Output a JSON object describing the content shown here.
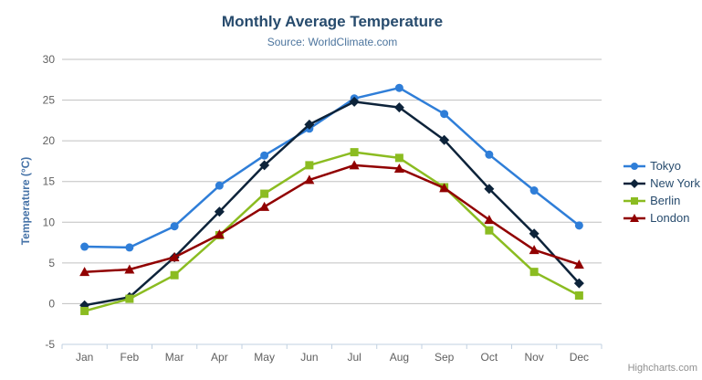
{
  "header": {
    "title": "Monthly Average Temperature",
    "subtitle": "Source: WorldClimate.com"
  },
  "credits": {
    "label": "Highcharts.com"
  },
  "export_menu": {
    "icon": "hamburger-icon"
  },
  "chart_data": {
    "type": "line",
    "title": "Monthly Average Temperature",
    "subtitle": "Source: WorldClimate.com",
    "categories": [
      "Jan",
      "Feb",
      "Mar",
      "Apr",
      "May",
      "Jun",
      "Jul",
      "Aug",
      "Sep",
      "Oct",
      "Nov",
      "Dec"
    ],
    "xlabel": "",
    "ylabel": "Temperature (°C)",
    "ylim": [
      -5,
      30
    ],
    "yticks": [
      -5,
      0,
      5,
      10,
      15,
      20,
      25,
      30
    ],
    "grid": true,
    "legend_position": "right",
    "series": [
      {
        "name": "Tokyo",
        "color": "#2f7ed8",
        "marker": "circle",
        "values": [
          7.0,
          6.9,
          9.5,
          14.5,
          18.2,
          21.5,
          25.2,
          26.5,
          23.3,
          18.3,
          13.9,
          9.6
        ]
      },
      {
        "name": "New York",
        "color": "#0d233a",
        "marker": "diamond",
        "values": [
          -0.2,
          0.8,
          5.7,
          11.3,
          17.0,
          22.0,
          24.8,
          24.1,
          20.1,
          14.1,
          8.6,
          2.5
        ]
      },
      {
        "name": "Berlin",
        "color": "#8bbc21",
        "marker": "square",
        "values": [
          -0.9,
          0.6,
          3.5,
          8.4,
          13.5,
          17.0,
          18.6,
          17.9,
          14.3,
          9.0,
          3.9,
          1.0
        ]
      },
      {
        "name": "London",
        "color": "#910000",
        "marker": "triangle",
        "values": [
          3.9,
          4.2,
          5.7,
          8.5,
          11.9,
          15.2,
          17.0,
          16.6,
          14.2,
          10.3,
          6.6,
          4.8
        ]
      }
    ]
  },
  "colors": {
    "title": "#274b6d",
    "subtitle": "#4d759e",
    "axis_labels": "#606060",
    "yaxis_title": "#4572a7",
    "gridline": "#c0c0c0",
    "axis_line": "#c0d0e0",
    "legend_text": "#274b6d",
    "credits": "#909090"
  }
}
